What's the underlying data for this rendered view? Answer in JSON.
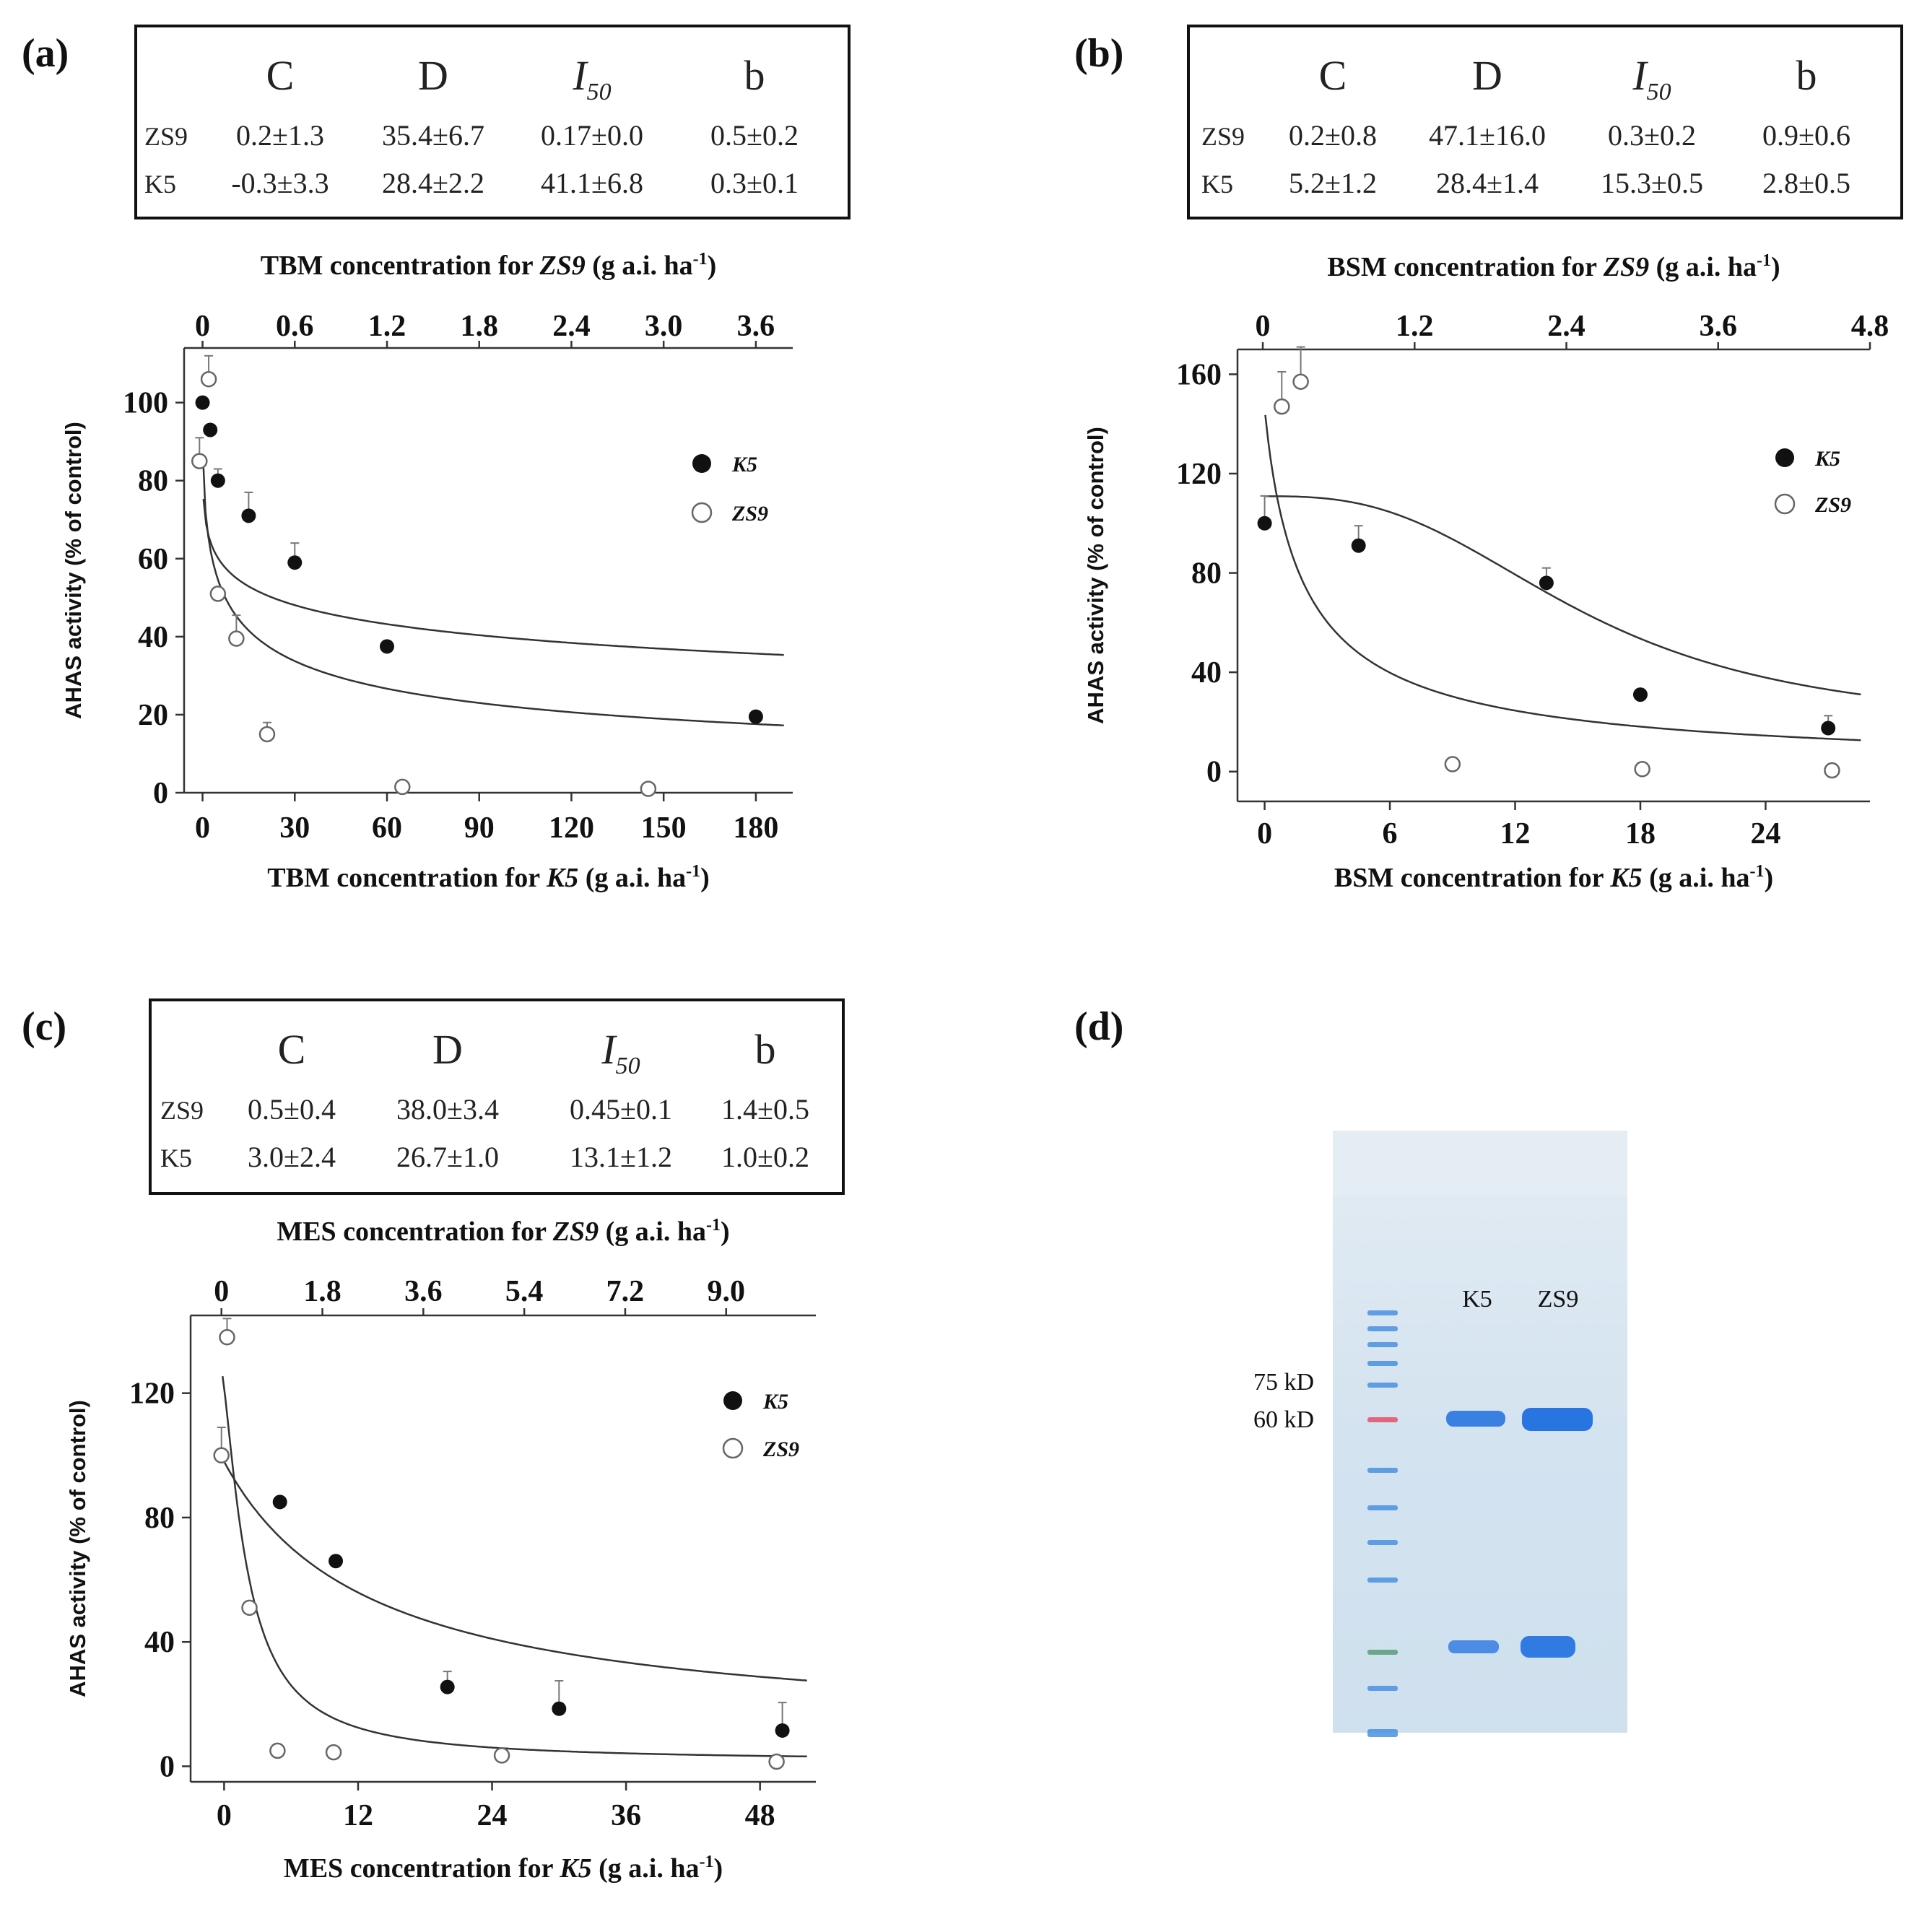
{
  "chart_data": [
    {
      "panel": "(a)",
      "type": "scatter",
      "table": {
        "headers": [
          "C",
          "D",
          "I",
          "b"
        ],
        "i50_subscript": "50",
        "rows": [
          {
            "label": "ZS9",
            "values": [
              "0.2±1.3",
              "35.4±6.7",
              "0.17±0.0",
              "0.5±0.2"
            ]
          },
          {
            "label": "K5",
            "values": [
              "-0.3±3.3",
              "28.4±2.2",
              "41.1±6.8",
              "0.3±0.1"
            ]
          }
        ]
      },
      "xlabel": "TBM concentration for K5 (g a.i. ha⁻¹)",
      "xlabel_parts": [
        "TBM concentration for ",
        "K5",
        " (g a.i. ha",
        "-1",
        ")"
      ],
      "x2label_parts": [
        "TBM concentration for ",
        "ZS9",
        " (g a.i. ha",
        "-1",
        ")"
      ],
      "ylabel": "AHAS activity (% of control)",
      "xlim": [
        -6,
        192
      ],
      "xticks": [
        0,
        30,
        60,
        90,
        120,
        150,
        180
      ],
      "xticklabels": [
        "0",
        "30",
        "60",
        "90",
        "120",
        "150",
        "180"
      ],
      "x2lim": [
        -0.12,
        3.84
      ],
      "x2ticks": [
        0,
        0.6,
        1.2,
        1.8,
        2.4,
        3.0,
        3.6
      ],
      "x2ticklabels": [
        "0",
        "0.6",
        "1.2",
        "1.8",
        "2.4",
        "3.0",
        "3.6"
      ],
      "ylim": [
        0,
        114
      ],
      "yticks": [
        0,
        20,
        40,
        60,
        80,
        100
      ],
      "yticklabels": [
        "0",
        "20",
        "40",
        "60",
        "80",
        "100"
      ],
      "legend": [
        "K5",
        "ZS9"
      ],
      "series": [
        {
          "name": "K5",
          "marker": "filled",
          "axis": "bottom",
          "x": [
            0,
            2.5,
            5,
            15,
            30,
            60,
            180
          ],
          "y": [
            100,
            93,
            80,
            71,
            59,
            37.5,
            19.5
          ],
          "err": [
            0,
            0,
            3,
            6,
            5,
            0,
            0
          ]
        },
        {
          "name": "ZS9",
          "marker": "open",
          "axis": "top",
          "x": [
            -0.02,
            0.04,
            0.1,
            0.22,
            0.42,
            1.3,
            2.9
          ],
          "y": [
            85,
            106,
            51,
            39.5,
            15,
            1.5,
            1
          ],
          "err": [
            6,
            6,
            0,
            6,
            3,
            0,
            0
          ]
        }
      ]
    },
    {
      "panel": "(b)",
      "type": "scatter",
      "table": {
        "headers": [
          "C",
          "D",
          "I",
          "b"
        ],
        "i50_subscript": "50",
        "rows": [
          {
            "label": "ZS9",
            "values": [
              "0.2±0.8",
              "47.1±16.0",
              "0.3±0.2",
              "0.9±0.6"
            ]
          },
          {
            "label": "K5",
            "values": [
              "5.2±1.2",
              "28.4±1.4",
              "15.3±0.5",
              "2.8±0.5"
            ]
          }
        ]
      },
      "xlabel": "BSM concentration for K5 (g a.i. ha⁻¹)",
      "xlabel_parts": [
        "BSM concentration for ",
        "K5",
        " (g a.i. ha",
        "-1",
        ")"
      ],
      "x2label_parts": [
        "BSM concentration for ",
        "ZS9",
        " (g a.i. ha",
        "-1",
        ")"
      ],
      "ylabel": "AHAS activity (% of control)",
      "xlim": [
        -1.3,
        29
      ],
      "xticks": [
        0,
        6,
        12,
        18,
        24
      ],
      "xticklabels": [
        "0",
        "6",
        "12",
        "18",
        "24"
      ],
      "x2lim": [
        -0.2,
        4.8
      ],
      "x2ticks": [
        0,
        1.2,
        2.4,
        3.6,
        4.8
      ],
      "x2ticklabels": [
        "0",
        "1.2",
        "2.4",
        "3.6",
        "4.8"
      ],
      "ylim": [
        -12,
        170
      ],
      "yticks": [
        0,
        40,
        80,
        120,
        160
      ],
      "yticklabels": [
        "0",
        "40",
        "80",
        "120",
        "160"
      ],
      "legend": [
        "K5",
        "ZS9"
      ],
      "series": [
        {
          "name": "K5",
          "marker": "filled",
          "axis": "bottom",
          "x": [
            0,
            4.5,
            13.5,
            18,
            27
          ],
          "y": [
            100,
            91,
            76,
            31,
            17.5
          ],
          "err": [
            11,
            8,
            6,
            0,
            5
          ]
        },
        {
          "name": "ZS9",
          "marker": "open",
          "axis": "top",
          "x": [
            0.15,
            0.3,
            1.5,
            3,
            4.5
          ],
          "y": [
            147,
            157,
            3,
            1,
            0.5
          ],
          "err": [
            14,
            14,
            0,
            0,
            0
          ]
        }
      ]
    },
    {
      "panel": "(c)",
      "type": "scatter",
      "table": {
        "headers": [
          "C",
          "D",
          "I",
          "b"
        ],
        "i50_subscript": "50",
        "rows": [
          {
            "label": "ZS9",
            "values": [
              "0.5±0.4",
              "38.0±3.4",
              "0.45±0.1",
              "1.4±0.5"
            ]
          },
          {
            "label": "K5",
            "values": [
              "3.0±2.4",
              "26.7±1.0",
              "13.1±1.2",
              "1.0±0.2"
            ]
          }
        ]
      },
      "xlabel": "MES concentration for K5 (g a.i. ha⁻¹)",
      "xlabel_parts": [
        "MES concentration for ",
        "K5",
        " (g a.i. ha",
        "-1",
        ")"
      ],
      "x2label_parts": [
        "MES concentration for ",
        "ZS9",
        " (g a.i. ha",
        "-1",
        ")"
      ],
      "ylabel": "AHAS activity (% of control)",
      "xlim": [
        -3,
        53
      ],
      "xticks": [
        0,
        12,
        24,
        36,
        48
      ],
      "xticklabels": [
        "0",
        "12",
        "24",
        "36",
        "48"
      ],
      "x2lim": [
        -0.55,
        10.6
      ],
      "x2ticks": [
        0,
        1.8,
        3.6,
        5.4,
        7.2,
        9.0
      ],
      "x2ticklabels": [
        "0",
        "1.8",
        "3.6",
        "5.4",
        "7.2",
        "9.0"
      ],
      "ylim": [
        -5,
        145
      ],
      "yticks": [
        0,
        40,
        80,
        120
      ],
      "yticklabels": [
        "0",
        "40",
        "80",
        "120"
      ],
      "legend": [
        "K5",
        "ZS9"
      ],
      "series": [
        {
          "name": "K5",
          "marker": "filled",
          "axis": "bottom",
          "x": [
            5,
            10,
            20,
            30,
            50
          ],
          "y": [
            85,
            66,
            25.5,
            18.5,
            11.5
          ],
          "err": [
            0,
            0,
            5,
            9,
            9
          ]
        },
        {
          "name": "ZS9",
          "marker": "open",
          "axis": "top",
          "x": [
            0,
            0.1,
            0.5,
            1.0,
            2.0,
            5.0,
            9.9
          ],
          "y": [
            100,
            138,
            51,
            5,
            4.5,
            3.5,
            1.5
          ],
          "err": [
            9,
            6,
            0,
            0,
            0,
            0,
            0
          ]
        }
      ]
    }
  ],
  "fit_curves": [
    {
      "panel": "(a)",
      "series": "K5",
      "C": -0.3,
      "D": 28.4,
      "I50": 41.1,
      "b": 0.3,
      "display_scale": 3.3
    },
    {
      "panel": "(a)",
      "series": "ZS9",
      "C": 0.2,
      "D": 35.4,
      "I50": 0.17,
      "b": 0.5,
      "display_scale": 2.7
    },
    {
      "panel": "(b)",
      "series": "K5",
      "C": 5.2,
      "D": 28.4,
      "I50": 15.3,
      "b": 2.8,
      "display_scale": 3.3
    },
    {
      "panel": "(b)",
      "series": "ZS9",
      "C": 0.2,
      "D": 47.1,
      "I50": 0.3,
      "b": 0.9,
      "display_scale": 3.3
    },
    {
      "panel": "(c)",
      "series": "K5",
      "C": 3.0,
      "D": 26.7,
      "I50": 13.1,
      "b": 1.0,
      "display_scale": 3.3
    },
    {
      "panel": "(c)",
      "series": "ZS9",
      "C": 0.5,
      "D": 38.0,
      "I50": 0.45,
      "b": 1.4,
      "display_scale": 3.3
    }
  ],
  "gel": {
    "panel": "(d)",
    "lane_labels": [
      "K5",
      "ZS9"
    ],
    "marker_labels": [
      "75 kD",
      "60 kD"
    ],
    "colors": {
      "band": "#1f6fe0",
      "ladder": "#4a90e0",
      "ladder_red": "#e0506a",
      "ladder_green": "#5a9c7a"
    }
  }
}
